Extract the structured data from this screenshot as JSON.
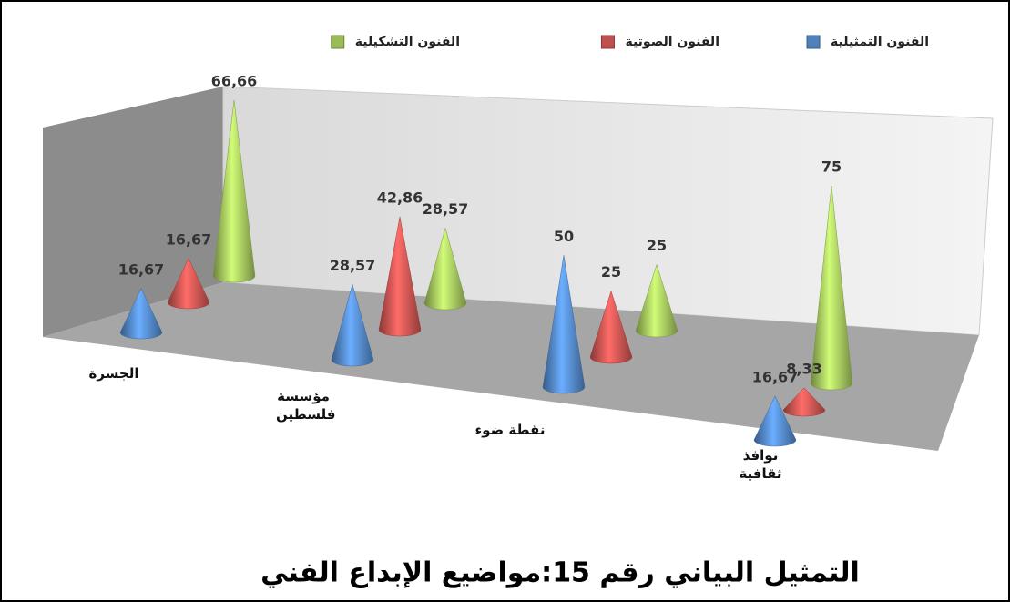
{
  "chart_data": {
    "type": "cone3d",
    "title": "التمثيل البياني رقم 15:مواضيع الإبداع الفني",
    "categories": [
      "الجسرة",
      "مؤسسة فلسطين",
      "نقطة ضوء",
      "نوافذ ثقافية"
    ],
    "series": [
      {
        "name": "الفنون التمثيلية",
        "color": "#4f81bd",
        "values": [
          16.67,
          28.57,
          50,
          16.67
        ],
        "value_labels": [
          "16,67",
          "28,57",
          "50",
          "16,67"
        ]
      },
      {
        "name": "الفنون الصوتية",
        "color": "#c0504d",
        "values": [
          16.67,
          42.86,
          25,
          8.33
        ],
        "value_labels": [
          "16,67",
          "42,86",
          "25",
          "8,33"
        ]
      },
      {
        "name": "الفنون التشكيلية",
        "color": "#9bbb59",
        "values": [
          66.66,
          28.57,
          25,
          75
        ],
        "value_labels": [
          "66,66",
          "28,57",
          "25",
          "75"
        ]
      }
    ]
  }
}
